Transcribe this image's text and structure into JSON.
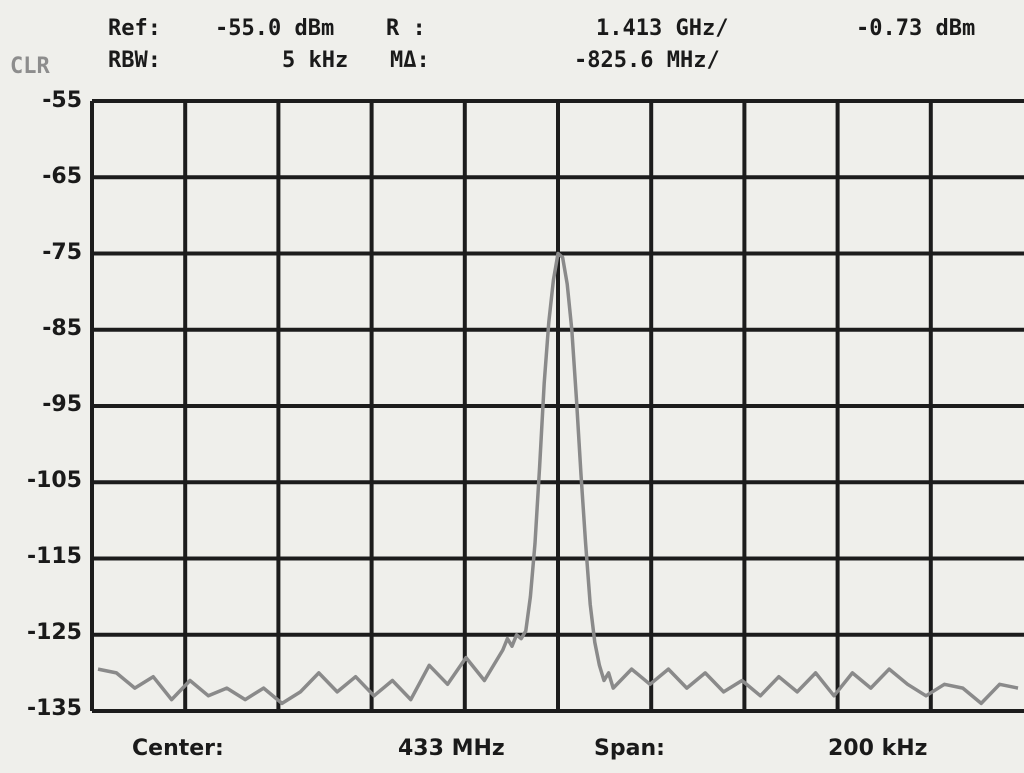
{
  "header": {
    "ref_label": "Ref:",
    "ref_value": "-55.0 dBm",
    "r_label": "R :",
    "r_freq": "1.413 GHz/",
    "r_level": "-0.73 dBm",
    "clr": "CLR",
    "rbw_label": "RBW:",
    "rbw_value": "5 kHz",
    "mdelta_label": "MΔ:",
    "mdelta_value": "-825.6 MHz/"
  },
  "footer": {
    "center_label": "Center:",
    "center_value": "433 MHz",
    "span_label": "Span:",
    "span_value": "200 kHz"
  },
  "chart_data": {
    "type": "line",
    "ylim": [
      -135,
      -55
    ],
    "yticks": [
      "-55",
      "-65",
      "-75",
      "-85",
      "-95",
      "-105",
      "-115",
      "-125",
      "-135"
    ],
    "grid": true,
    "x_divisions": 10,
    "colors": {
      "trace": "#8a8a8a",
      "grid": "#1c1c1c",
      "background": "#efefeb"
    },
    "series": [
      {
        "x": [
          0,
          2,
          4,
          6,
          8,
          10,
          12,
          14,
          16,
          18,
          20,
          22,
          24,
          26,
          28,
          30,
          32,
          34,
          36,
          38,
          40,
          42,
          44,
          44.5,
          45,
          45.5,
          46,
          46.5,
          47,
          47.5,
          48,
          48.5,
          49,
          49.5,
          50,
          50.5,
          51,
          51.5,
          52,
          52.5,
          53,
          53.5,
          54,
          54.5,
          55,
          55.5,
          56,
          58,
          60,
          62,
          64,
          66,
          68,
          70,
          72,
          74,
          76,
          78,
          80,
          82,
          84,
          86,
          88,
          90,
          92,
          94,
          96,
          98,
          100
        ],
        "values": [
          -129.5,
          -130,
          -132,
          -130.5,
          -133.5,
          -131,
          -133,
          -132,
          -133.5,
          -132,
          -134,
          -132.5,
          -130,
          -132.5,
          -130.5,
          -133,
          -131,
          -133.5,
          -129,
          -131.5,
          -128,
          -131,
          -127,
          -125.5,
          -126.5,
          -125,
          -125.5,
          -124.5,
          -120,
          -113,
          -103,
          -92,
          -84,
          -78.5,
          -75,
          -75.5,
          -79,
          -85,
          -94,
          -104,
          -113,
          -121,
          -126,
          -129,
          -131,
          -130,
          -132,
          -129.5,
          -131.5,
          -129.5,
          -132,
          -130,
          -132.5,
          -131,
          -133,
          -130.5,
          -132.5,
          -130,
          -133,
          -130,
          -132,
          -129.5,
          -131.5,
          -133,
          -131.5,
          -132,
          -134,
          -131.5,
          -132
        ]
      }
    ]
  }
}
